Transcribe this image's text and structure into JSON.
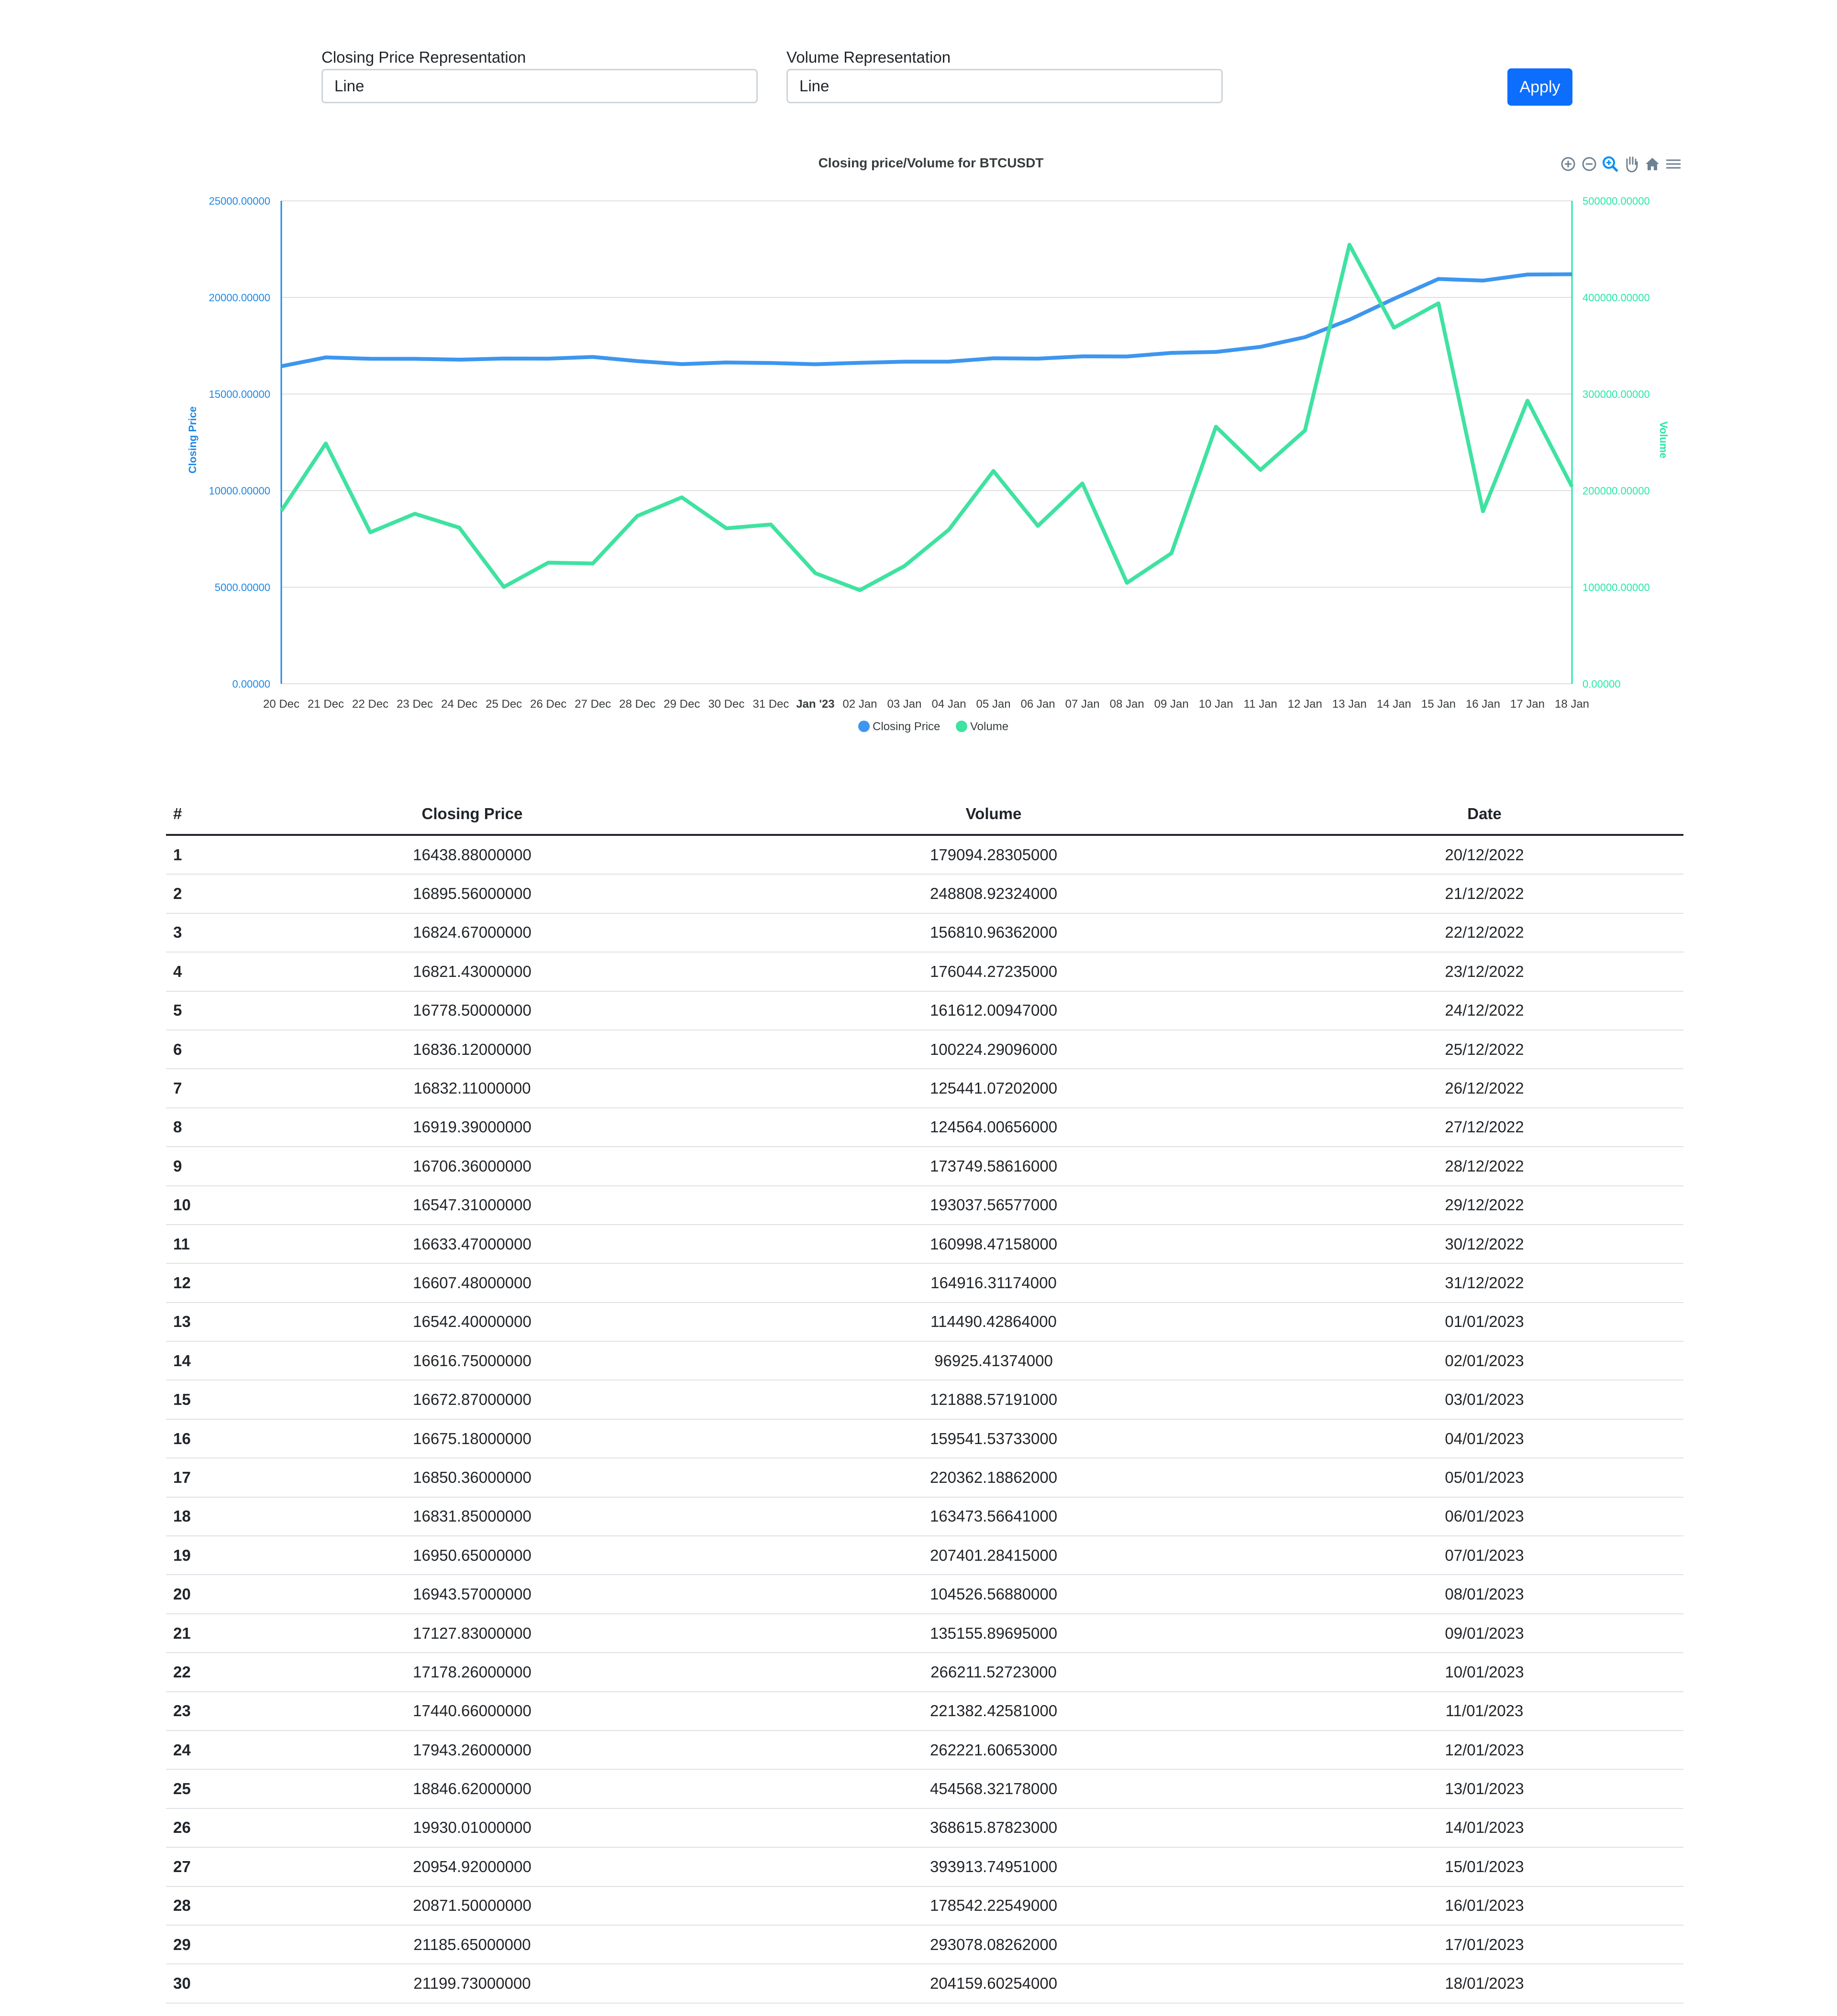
{
  "controls": {
    "closing_label": "Closing Price Representation",
    "closing_value": "Line",
    "volume_label": "Volume Representation",
    "volume_value": "Line",
    "apply_label": "Apply"
  },
  "toolbar": {
    "icons": [
      "zoom-in-icon",
      "zoom-out-icon",
      "selection-zoom-icon",
      "pan-hand-icon",
      "reset-home-icon",
      "menu-icon"
    ]
  },
  "colors": {
    "price": "#3d96ef",
    "volume": "#3fe2a1",
    "axis_left": "#1e88e5",
    "axis_right": "#26e7a6",
    "apply": "#0d6efd"
  },
  "chart_data": {
    "type": "line",
    "title": "Closing price/Volume for BTCUSDT",
    "categories": [
      "20 Dec",
      "21 Dec",
      "22 Dec",
      "23 Dec",
      "24 Dec",
      "25 Dec",
      "26 Dec",
      "27 Dec",
      "28 Dec",
      "29 Dec",
      "30 Dec",
      "31 Dec",
      "Jan '23",
      "02 Jan",
      "03 Jan",
      "04 Jan",
      "05 Jan",
      "06 Jan",
      "07 Jan",
      "08 Jan",
      "09 Jan",
      "10 Jan",
      "11 Jan",
      "12 Jan",
      "13 Jan",
      "14 Jan",
      "15 Jan",
      "16 Jan",
      "17 Jan",
      "18 Jan"
    ],
    "y_left": {
      "label": "Closing Price",
      "min": 0,
      "max": 25000,
      "ticks": [
        "0.00000",
        "5000.00000",
        "10000.00000",
        "15000.00000",
        "20000.00000",
        "25000.00000"
      ]
    },
    "y_right": {
      "label": "Volume",
      "min": 0,
      "max": 500000,
      "ticks": [
        "0.00000",
        "100000.00000",
        "200000.00000",
        "300000.00000",
        "400000.00000",
        "500000.00000"
      ]
    },
    "grid": true,
    "legend_position": "bottom-center",
    "series": [
      {
        "name": "Closing Price",
        "axis": "left",
        "values": [
          16438.88,
          16895.56,
          16824.67,
          16821.43,
          16778.5,
          16836.12,
          16832.11,
          16919.39,
          16706.36,
          16547.31,
          16633.47,
          16607.48,
          16542.4,
          16616.75,
          16672.87,
          16675.18,
          16850.36,
          16831.85,
          16950.65,
          16943.57,
          17127.83,
          17178.26,
          17440.66,
          17943.26,
          18846.62,
          19930.01,
          20954.92,
          20871.5,
          21185.65,
          21199.73
        ]
      },
      {
        "name": "Volume",
        "axis": "right",
        "values": [
          179094.28305,
          248808.92324,
          156810.96362,
          176044.27235,
          161612.00947,
          100224.29096,
          125441.07202,
          124564.00656,
          173749.58616,
          193037.56577,
          160998.47158,
          164916.31174,
          114490.42864,
          96925.41374,
          121888.57191,
          159541.53733,
          220362.18862,
          163473.56641,
          207401.28415,
          104526.5688,
          135155.89695,
          266211.52723,
          221382.42581,
          262221.60653,
          454568.32178,
          368615.87823,
          393913.74951,
          178542.22549,
          293078.08262,
          204159.60254
        ]
      }
    ]
  },
  "table": {
    "headers": [
      "#",
      "Closing Price",
      "Volume",
      "Date"
    ],
    "rows": [
      [
        "1",
        "16438.88000000",
        "179094.28305000",
        "20/12/2022"
      ],
      [
        "2",
        "16895.56000000",
        "248808.92324000",
        "21/12/2022"
      ],
      [
        "3",
        "16824.67000000",
        "156810.96362000",
        "22/12/2022"
      ],
      [
        "4",
        "16821.43000000",
        "176044.27235000",
        "23/12/2022"
      ],
      [
        "5",
        "16778.50000000",
        "161612.00947000",
        "24/12/2022"
      ],
      [
        "6",
        "16836.12000000",
        "100224.29096000",
        "25/12/2022"
      ],
      [
        "7",
        "16832.11000000",
        "125441.07202000",
        "26/12/2022"
      ],
      [
        "8",
        "16919.39000000",
        "124564.00656000",
        "27/12/2022"
      ],
      [
        "9",
        "16706.36000000",
        "173749.58616000",
        "28/12/2022"
      ],
      [
        "10",
        "16547.31000000",
        "193037.56577000",
        "29/12/2022"
      ],
      [
        "11",
        "16633.47000000",
        "160998.47158000",
        "30/12/2022"
      ],
      [
        "12",
        "16607.48000000",
        "164916.31174000",
        "31/12/2022"
      ],
      [
        "13",
        "16542.40000000",
        "114490.42864000",
        "01/01/2023"
      ],
      [
        "14",
        "16616.75000000",
        "96925.41374000",
        "02/01/2023"
      ],
      [
        "15",
        "16672.87000000",
        "121888.57191000",
        "03/01/2023"
      ],
      [
        "16",
        "16675.18000000",
        "159541.53733000",
        "04/01/2023"
      ],
      [
        "17",
        "16850.36000000",
        "220362.18862000",
        "05/01/2023"
      ],
      [
        "18",
        "16831.85000000",
        "163473.56641000",
        "06/01/2023"
      ],
      [
        "19",
        "16950.65000000",
        "207401.28415000",
        "07/01/2023"
      ],
      [
        "20",
        "16943.57000000",
        "104526.56880000",
        "08/01/2023"
      ],
      [
        "21",
        "17127.83000000",
        "135155.89695000",
        "09/01/2023"
      ],
      [
        "22",
        "17178.26000000",
        "266211.52723000",
        "10/01/2023"
      ],
      [
        "23",
        "17440.66000000",
        "221382.42581000",
        "11/01/2023"
      ],
      [
        "24",
        "17943.26000000",
        "262221.60653000",
        "12/01/2023"
      ],
      [
        "25",
        "18846.62000000",
        "454568.32178000",
        "13/01/2023"
      ],
      [
        "26",
        "19930.01000000",
        "368615.87823000",
        "14/01/2023"
      ],
      [
        "27",
        "20954.92000000",
        "393913.74951000",
        "15/01/2023"
      ],
      [
        "28",
        "20871.50000000",
        "178542.22549000",
        "16/01/2023"
      ],
      [
        "29",
        "21185.65000000",
        "293078.08262000",
        "17/01/2023"
      ],
      [
        "30",
        "21199.73000000",
        "204159.60254000",
        "18/01/2023"
      ]
    ]
  }
}
